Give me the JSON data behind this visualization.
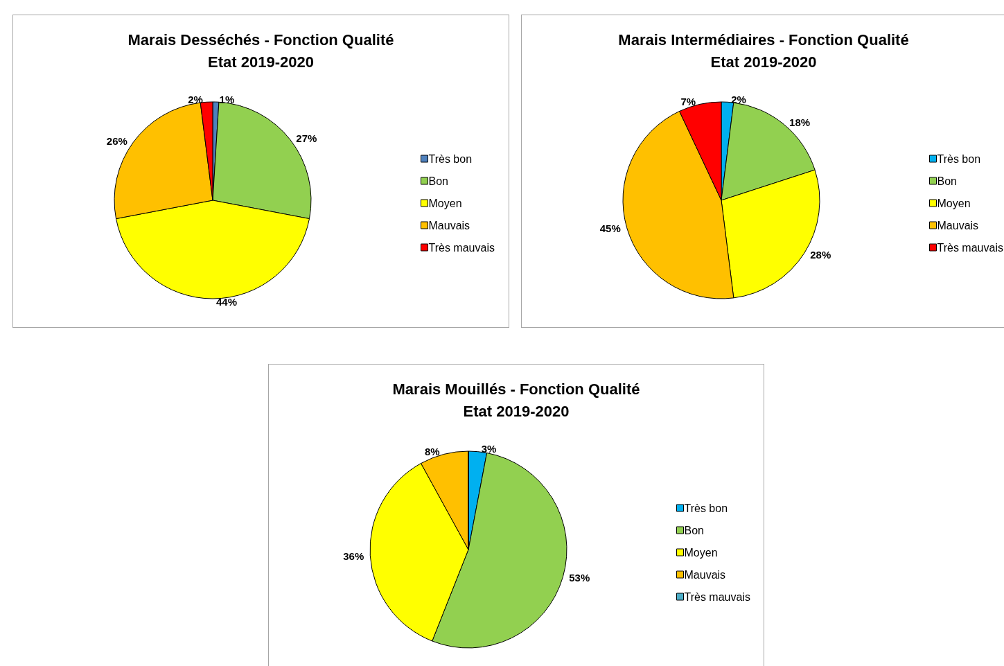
{
  "chart_data": [
    {
      "type": "pie",
      "title": "Marais Desséchés - Fonction Qualité",
      "subtitle": "Etat 2019-2020",
      "categories": [
        "Très bon",
        "Bon",
        "Moyen",
        "Mauvais",
        "Très mauvais"
      ],
      "values": [
        1,
        27,
        44,
        26,
        2
      ],
      "colors": [
        "#4f81bd",
        "#92d050",
        "#ffff00",
        "#ffc000",
        "#ff0000"
      ],
      "value_labels": [
        "1%",
        "27%",
        "44%",
        "26%",
        "2%"
      ],
      "legend": "right"
    },
    {
      "type": "pie",
      "title": "Marais Intermédiaires - Fonction Qualité",
      "subtitle": "Etat 2019-2020",
      "categories": [
        "Très bon",
        "Bon",
        "Moyen",
        "Mauvais",
        "Très mauvais"
      ],
      "values": [
        2,
        18,
        28,
        45,
        7
      ],
      "colors": [
        "#00b0f0",
        "#92d050",
        "#ffff00",
        "#ffc000",
        "#ff0000"
      ],
      "value_labels": [
        "2%",
        "18%",
        "28%",
        "45%",
        "7%"
      ],
      "legend": "right"
    },
    {
      "type": "pie",
      "title": "Marais Mouillés - Fonction Qualité",
      "subtitle": "Etat 2019-2020",
      "categories": [
        "Très bon",
        "Bon",
        "Moyen",
        "Mauvais",
        "Très mauvais"
      ],
      "values": [
        3,
        53,
        36,
        8,
        0
      ],
      "colors": [
        "#00b0f0",
        "#92d050",
        "#ffff00",
        "#ffc000",
        "#4bacc6"
      ],
      "value_labels": [
        "3%",
        "53%",
        "36%",
        "8%",
        null
      ],
      "legend": "right"
    }
  ]
}
